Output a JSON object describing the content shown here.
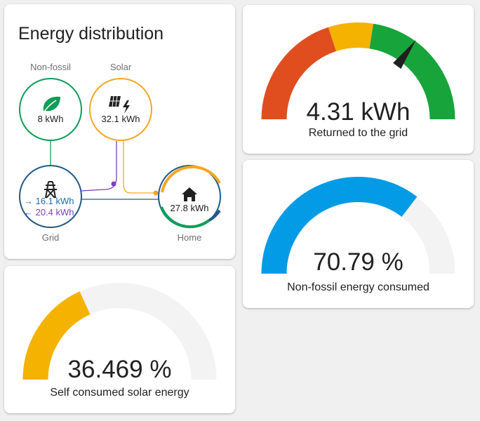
{
  "energy_distribution": {
    "title": "Energy distribution",
    "nodes": {
      "non_fossil": {
        "label": "Non-fossil",
        "value": "8 kWh",
        "icon": "leaf-icon",
        "color": "#0f9d58"
      },
      "solar": {
        "label": "Solar",
        "value": "32.1 kWh",
        "icon": "solar-power-icon",
        "color": "#f5a623"
      },
      "grid": {
        "label": "Grid",
        "from_grid": "→ 16.1 kWh",
        "to_grid": "← 20.4 kWh",
        "icon": "transmission-tower-icon",
        "color": "#1f5a8a"
      },
      "home": {
        "label": "Home",
        "value": "27.8 kWh",
        "icon": "home-icon"
      }
    },
    "colors": {
      "grid_in": "#1e6fb3",
      "grid_out": "#7b3fbf",
      "solar": "#f5a623",
      "non_fossil": "#0f9d58"
    }
  },
  "gauges": {
    "returned_to_grid": {
      "value": "4.31 kWh",
      "label": "Returned to the grid",
      "needle_fraction": 0.7,
      "segments": [
        {
          "color": "#e04e1f",
          "to": 0.4
        },
        {
          "color": "#f5b200",
          "to": 0.55
        },
        {
          "color": "#17a53b",
          "to": 1.0
        }
      ]
    },
    "non_fossil_consumed": {
      "value": "70.79 %",
      "label": "Non-fossil energy consumed",
      "fill_fraction": 0.7079,
      "color": "#039be5"
    },
    "self_consumed_solar": {
      "value": "36.469 %",
      "label": "Self consumed solar energy",
      "fill_fraction": 0.36469,
      "color": "#f5b200"
    }
  }
}
